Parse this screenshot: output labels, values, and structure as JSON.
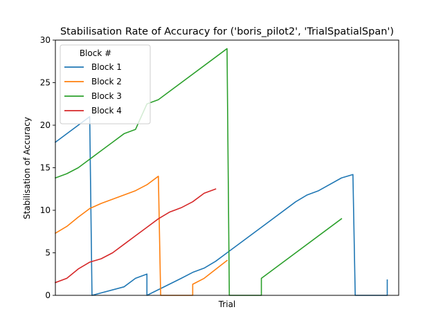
{
  "chart_data": {
    "type": "line",
    "title": "Stabilisation Rate of Accuracy for ('boris_pilot2', 'TrialSpatialSpan')",
    "xlabel": "Trial",
    "ylabel": "Stabilisation of Accuracy",
    "xlim": [
      0,
      60
    ],
    "ylim": [
      0,
      30
    ],
    "yticks": [
      0,
      5,
      10,
      15,
      20,
      25,
      30
    ],
    "grid": false,
    "legend": {
      "title": "Block #",
      "placement": "top-left"
    },
    "series": [
      {
        "name": "Block 1",
        "color": "#1f77b4",
        "x": [
          0,
          6,
          6.4,
          12,
          14,
          16,
          16,
          22,
          24,
          26,
          28,
          30,
          42,
          44,
          46,
          50,
          52,
          52.4,
          58,
          58
        ],
        "y": [
          18,
          21,
          0,
          1,
          2,
          2.5,
          0,
          2,
          2.7,
          3.2,
          4,
          5,
          11,
          11.8,
          12.3,
          13.8,
          14.2,
          0,
          0,
          1.8
        ]
      },
      {
        "name": "Block 2",
        "color": "#ff7f0e",
        "x": [
          0,
          2,
          4,
          6,
          8,
          10,
          12,
          14,
          16,
          18,
          18.4,
          24,
          24,
          26,
          30
        ],
        "y": [
          7.3,
          8.1,
          9.2,
          10.2,
          10.8,
          11.3,
          11.8,
          12.3,
          13,
          14,
          0,
          0,
          1.3,
          2,
          4.1
        ]
      },
      {
        "name": "Block 3",
        "color": "#2ca02c",
        "x": [
          0,
          2,
          4,
          6,
          8,
          10,
          12,
          14,
          16,
          18,
          30,
          30.4,
          36,
          36,
          50
        ],
        "y": [
          13.8,
          14.3,
          15,
          16,
          17,
          18,
          19,
          19.5,
          22.5,
          23,
          29,
          0,
          0,
          2,
          9
        ]
      },
      {
        "name": "Block 4",
        "color": "#d62728",
        "x": [
          0,
          2,
          4,
          6,
          8,
          10,
          12,
          14,
          16,
          18,
          20,
          22,
          24,
          26,
          28
        ],
        "y": [
          1.5,
          2,
          3.1,
          3.9,
          4.3,
          5,
          6,
          7,
          8,
          9,
          9.8,
          10.3,
          11,
          12,
          12.5
        ]
      }
    ]
  }
}
